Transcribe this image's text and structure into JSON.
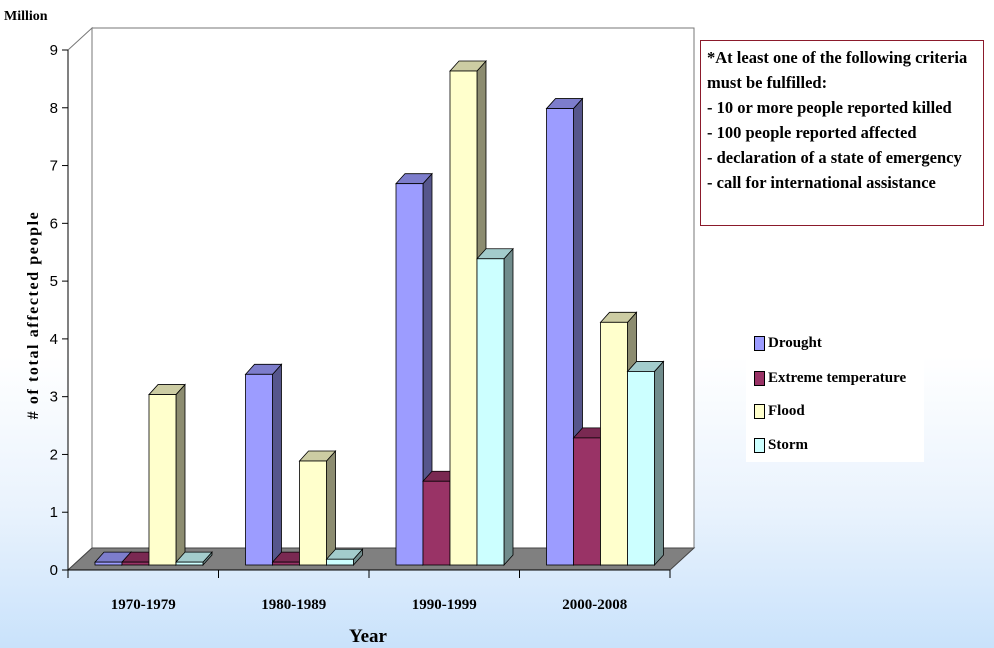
{
  "chart_data": {
    "type": "bar",
    "unit_label": "Million",
    "xlabel": "Year",
    "ylabel": "# of total affected people",
    "ylim": [
      0,
      9
    ],
    "yticks": [
      "0",
      "1",
      "2",
      "3",
      "4",
      "5",
      "6",
      "7",
      "8",
      "9"
    ],
    "categories": [
      "1970-1979",
      "1980-1989",
      "1990-1999",
      "2000-2008"
    ],
    "series": [
      {
        "name": "Drought",
        "values": [
          0.05,
          3.3,
          6.6,
          7.9
        ],
        "color": "#9c9cff"
      },
      {
        "name": "Extreme temperature",
        "values": [
          0.05,
          0.05,
          1.45,
          2.2
        ],
        "color": "#993366"
      },
      {
        "name": "Flood",
        "values": [
          2.95,
          1.8,
          8.55,
          4.2
        ],
        "color": "#ffffcc"
      },
      {
        "name": "Storm",
        "values": [
          0.05,
          0.1,
          5.3,
          3.35
        ],
        "color": "#ccffff"
      }
    ],
    "grid": false,
    "legend_position": "right",
    "annotation": [
      "*At least one of the following criteria",
      "must be fulfilled:",
      "- 10 or more people reported killed",
      "- 100 people reported affected",
      "- declaration of a state of  emergency",
      "- call for international assistance"
    ]
  }
}
